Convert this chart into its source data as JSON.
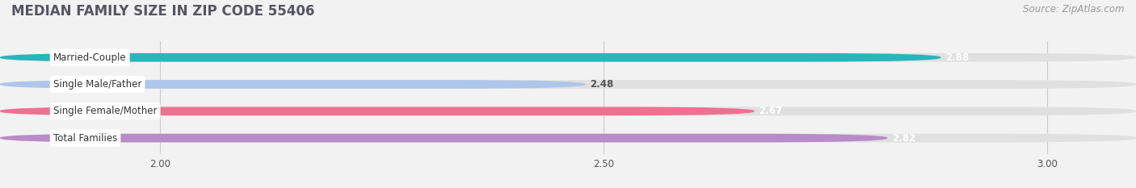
{
  "title": "MEDIAN FAMILY SIZE IN ZIP CODE 55406",
  "source": "Source: ZipAtlas.com",
  "categories": [
    "Married-Couple",
    "Single Male/Father",
    "Single Female/Mother",
    "Total Families"
  ],
  "values": [
    2.88,
    2.48,
    2.67,
    2.82
  ],
  "colors": [
    "#29b5bb",
    "#aec6ea",
    "#f07090",
    "#b88cc8"
  ],
  "value_text_colors": [
    "#ffffff",
    "#555555",
    "#ffffff",
    "#ffffff"
  ],
  "bar_height": 0.32,
  "xlim": [
    1.82,
    3.1
  ],
  "xticks": [
    2.0,
    2.5,
    3.0
  ],
  "background_color": "#f2f2f2",
  "bar_background_color": "#e0e0e0",
  "title_color": "#555566",
  "source_color": "#999999",
  "label_color": "#333333",
  "title_fontsize": 12,
  "source_fontsize": 8.5,
  "label_fontsize": 8.5,
  "value_fontsize": 8.5,
  "tick_fontsize": 8.5,
  "fig_width": 14.06,
  "fig_height": 2.33,
  "dpi": 100
}
